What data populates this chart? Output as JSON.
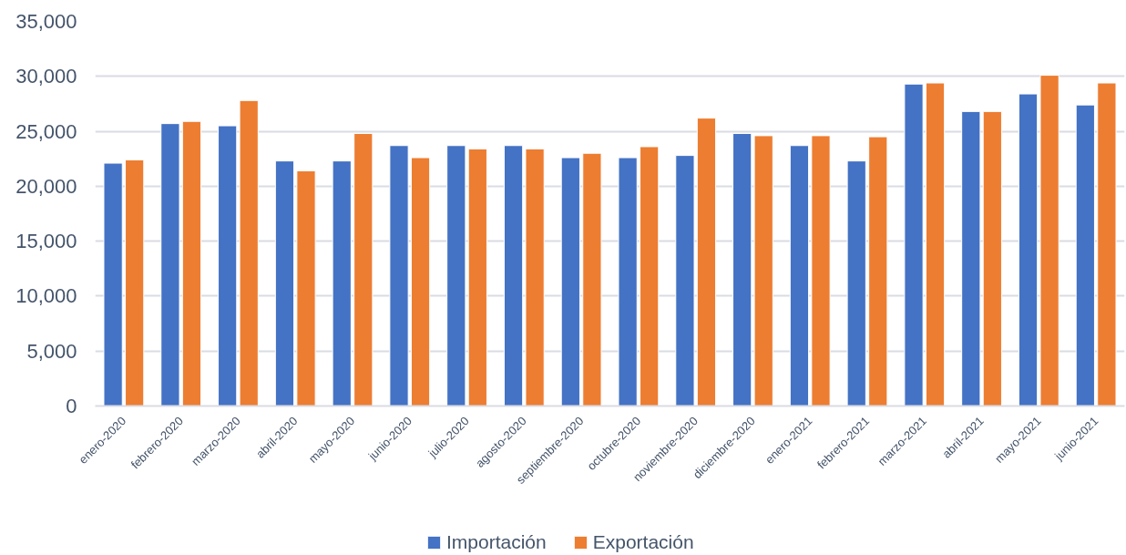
{
  "chart_data": {
    "type": "bar",
    "categories": [
      "enero-2020",
      "febrero-2020",
      "marzo-2020",
      "abril-2020",
      "mayo-2020",
      "junio-2020",
      "julio-2020",
      "agosto-2020",
      "septiembre-2020",
      "octubre-2020",
      "noviembre-2020",
      "diciembre-2020",
      "enero-2021",
      "febrero-2021",
      "marzo-2021",
      "abril-2021",
      "mayo-2021",
      "junio-2021"
    ],
    "series": [
      {
        "name": "Importación",
        "color": "#4472c4",
        "values": [
          22100,
          25700,
          25500,
          22300,
          22300,
          23700,
          23700,
          23700,
          22600,
          22600,
          22800,
          24800,
          23700,
          22300,
          29300,
          26800,
          28400,
          27400
        ]
      },
      {
        "name": "Exportación",
        "color": "#ed7d31",
        "values": [
          22400,
          25900,
          27800,
          21400,
          24800,
          22600,
          23400,
          23400,
          23000,
          23600,
          26200,
          24600,
          24600,
          24500,
          29400,
          26800,
          30100,
          29400
        ]
      }
    ],
    "ylim": [
      0,
      35000
    ],
    "yticks": [
      {
        "value": 0,
        "label": "0"
      },
      {
        "value": 5000,
        "label": "5,000"
      },
      {
        "value": 10000,
        "label": "10,000"
      },
      {
        "value": 15000,
        "label": "15,000"
      },
      {
        "value": 20000,
        "label": "20,000"
      },
      {
        "value": 25000,
        "label": "25,000"
      },
      {
        "value": 30000,
        "label": "30,000"
      },
      {
        "value": 35000,
        "label": "35,000"
      }
    ],
    "grid": "y",
    "legend": "bottom"
  }
}
